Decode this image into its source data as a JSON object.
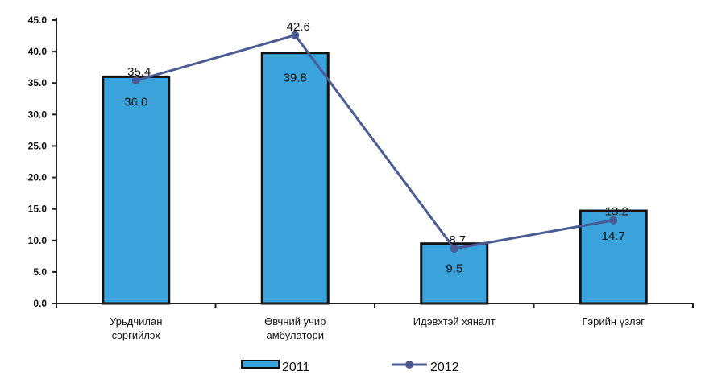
{
  "chart_data": {
    "type": "bar",
    "categories": [
      [
        "Урьдчилан",
        "сэргийлэх"
      ],
      [
        "Өвчний учир",
        "амбулатори"
      ],
      [
        "Идэвхтэй хяналт"
      ],
      [
        "Гэрийн үзлэг"
      ]
    ],
    "series": [
      {
        "name": "2011",
        "type": "bar",
        "color": "#3aa3dc",
        "values": [
          36.0,
          39.8,
          9.5,
          14.7
        ],
        "labels": [
          "36.0",
          "39.8",
          "9.5",
          "14.7"
        ]
      },
      {
        "name": "2012",
        "type": "line",
        "color": "#4a5b94",
        "values": [
          35.4,
          42.6,
          8.7,
          13.2
        ],
        "labels": [
          "35.4",
          "42.6",
          "8.7",
          "13.2"
        ]
      }
    ],
    "y_ticks": [
      "0.0",
      "5.0",
      "10.0",
      "15.0",
      "20.0",
      "25.0",
      "30.0",
      "35.0",
      "40.0",
      "45.0"
    ],
    "ylim": [
      0,
      45
    ],
    "grid": false,
    "legend": "bottom"
  }
}
